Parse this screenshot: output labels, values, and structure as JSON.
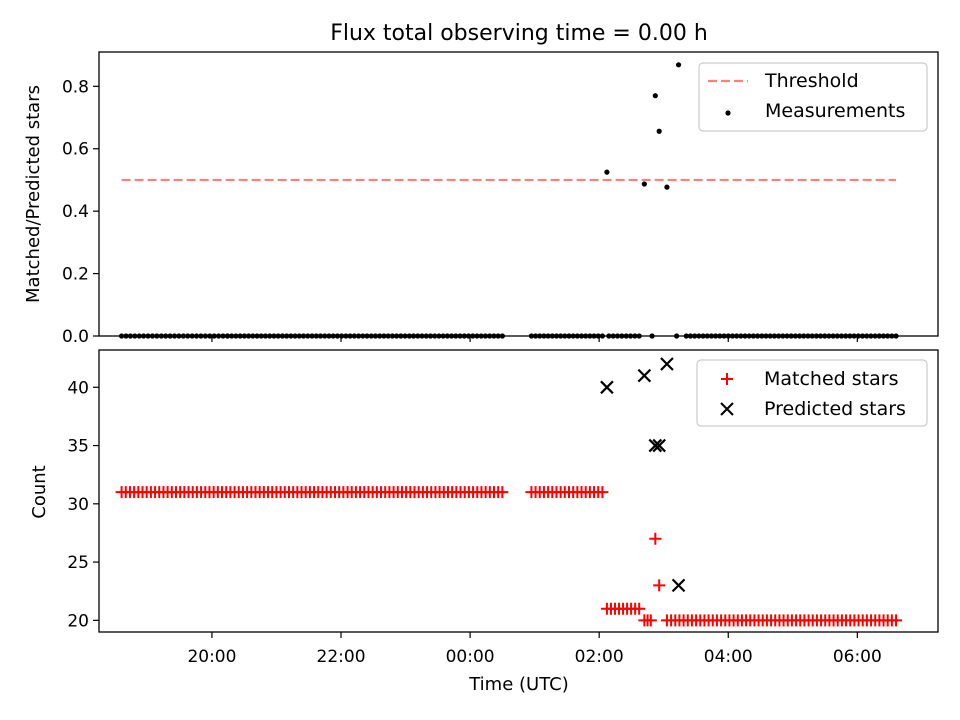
{
  "chart_data": [
    {
      "type": "scatter",
      "title": "Flux total observing time = 0.00 h",
      "xlabel": "",
      "ylabel": "Matched/Predicted stars",
      "ylim": [
        0,
        0.91
      ],
      "yticks": [
        0.0,
        0.2,
        0.4,
        0.6,
        0.8
      ],
      "ytick_labels": [
        "0.0",
        "0.2",
        "0.4",
        "0.6",
        "0.8"
      ],
      "xlim_hours": [
        18.25,
        31.25
      ],
      "xticks_hours": [
        20,
        22,
        24,
        26,
        28,
        30
      ],
      "xtick_labels": [],
      "legend_position": "top-right",
      "grid": false,
      "threshold": {
        "name": "Threshold",
        "value": 0.5,
        "x_range_hours": [
          18.6,
          30.6
        ],
        "color": "#ff7f7f"
      },
      "series": [
        {
          "name": "Measurements",
          "color": "#000000",
          "marker": "dot",
          "points": [
            {
              "t": 26.12,
              "v": 0.525
            },
            {
              "t": 26.7,
              "v": 0.487
            },
            {
              "t": 26.87,
              "v": 0.77
            },
            {
              "t": 26.93,
              "v": 0.656
            },
            {
              "t": 27.05,
              "v": 0.477
            },
            {
              "t": 27.23,
              "v": 0.869
            }
          ],
          "zero_runs": [
            {
              "start": 18.6,
              "end": 20.24,
              "n": 25
            },
            {
              "start": 20.24,
              "end": 24.5,
              "n": 66
            },
            {
              "start": 24.95,
              "end": 26.05,
              "n": 18
            },
            {
              "start": 26.15,
              "end": 26.62,
              "n": 8
            },
            {
              "start": 26.82,
              "end": 26.84,
              "n": 1
            },
            {
              "start": 27.2,
              "end": 27.22,
              "n": 1
            },
            {
              "start": 27.35,
              "end": 30.6,
              "n": 51
            }
          ]
        }
      ]
    },
    {
      "type": "scatter",
      "title": "",
      "xlabel": "Time (UTC)",
      "ylabel": "Count",
      "ylim": [
        19,
        43.2
      ],
      "yticks": [
        20,
        25,
        30,
        35,
        40
      ],
      "ytick_labels": [
        "20",
        "25",
        "30",
        "35",
        "40"
      ],
      "xlim_hours": [
        18.25,
        31.25
      ],
      "xticks_hours": [
        20,
        22,
        24,
        26,
        28,
        30
      ],
      "xtick_labels": [
        "20:00",
        "22:00",
        "00:00",
        "02:00",
        "04:00",
        "06:00"
      ],
      "legend_position": "top-right",
      "grid": false,
      "series": [
        {
          "name": "Matched stars",
          "color": "#ff0000",
          "marker": "plus",
          "runs": [
            {
              "start": 18.6,
              "end": 24.5,
              "value": 31,
              "n": 92
            },
            {
              "start": 24.95,
              "end": 26.05,
              "value": 31,
              "n": 18
            },
            {
              "start": 26.12,
              "end": 26.62,
              "value": 21,
              "n": 9
            },
            {
              "start": 26.7,
              "end": 26.8,
              "value": 20,
              "n": 3
            },
            {
              "start": 27.05,
              "end": 30.6,
              "value": 20,
              "n": 56
            }
          ],
          "points": [
            {
              "t": 26.87,
              "v": 27
            },
            {
              "t": 26.93,
              "v": 23
            }
          ]
        },
        {
          "name": "Predicted stars",
          "color": "#000000",
          "marker": "x",
          "points": [
            {
              "t": 26.12,
              "v": 40
            },
            {
              "t": 26.7,
              "v": 41
            },
            {
              "t": 26.87,
              "v": 35
            },
            {
              "t": 26.93,
              "v": 35
            },
            {
              "t": 27.05,
              "v": 42
            },
            {
              "t": 27.23,
              "v": 23
            }
          ]
        }
      ]
    }
  ]
}
